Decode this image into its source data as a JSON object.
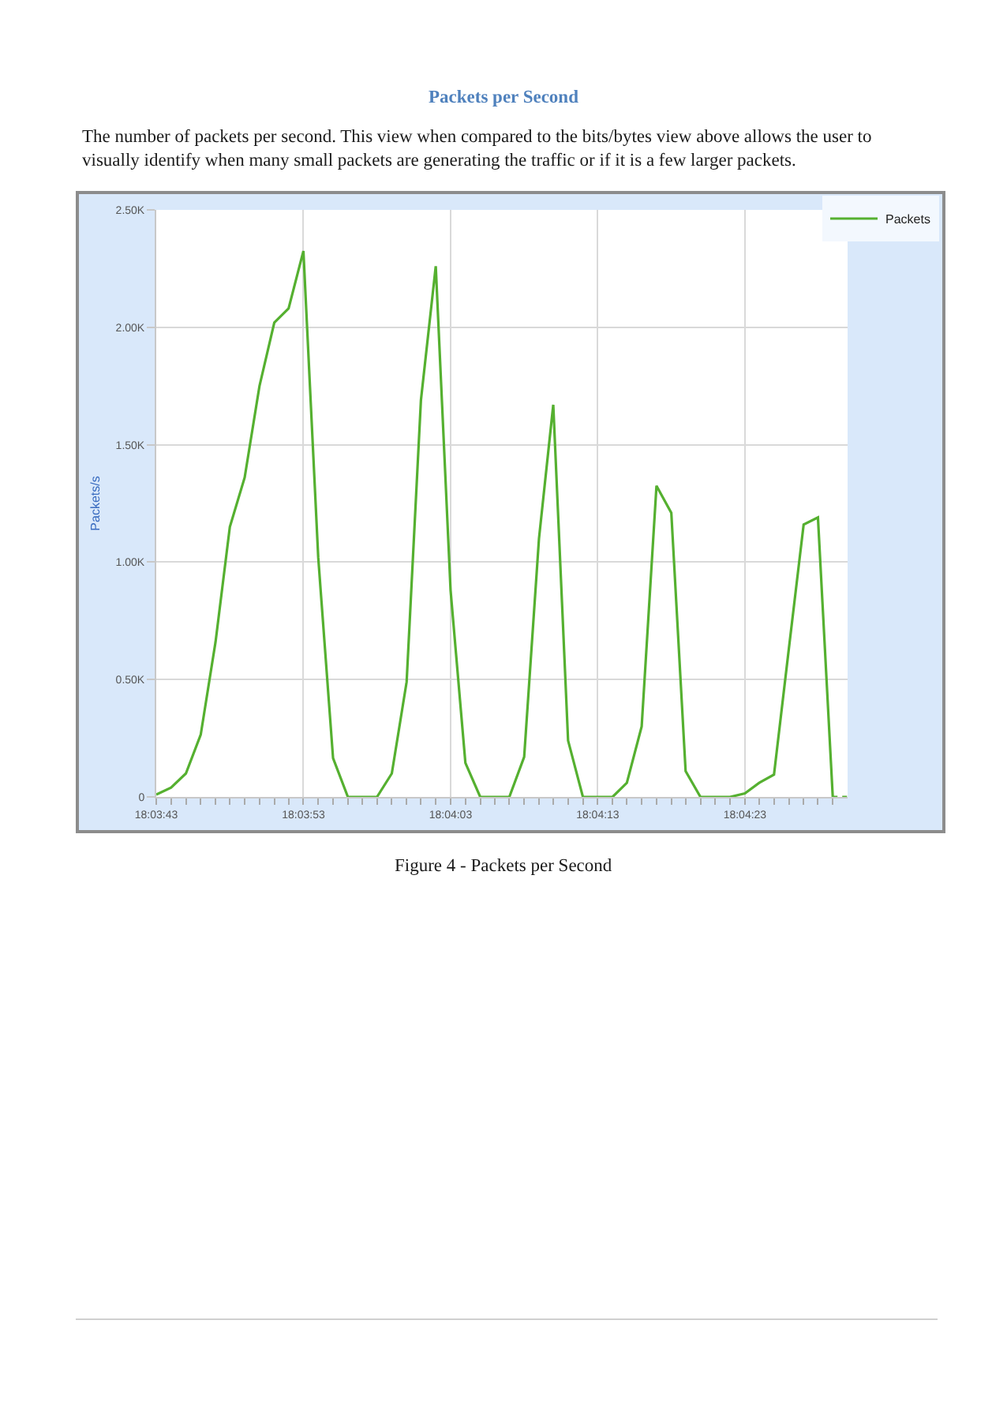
{
  "chart_data": {
    "type": "line",
    "title": "Packets per Second",
    "subtitle": "The number of packets per second. This view when compared to the bits/bytes view above allows the user to visually identify when many small packets are generating the traffic or if it is a few larger packets.",
    "ylabel": "Packets/s",
    "annotations": [
      "Figure 4 - Packets per Second"
    ],
    "x": [
      18.06194,
      18.06222,
      18.0625,
      18.06278,
      18.06306,
      18.06333,
      18.06361,
      18.06389,
      18.06417,
      18.06444,
      18.06472,
      18.065,
      18.06528,
      18.06556,
      18.06583,
      18.06611,
      18.06639,
      18.06667,
      18.06694,
      18.06722,
      18.0675,
      18.06778,
      18.06806,
      18.06833,
      18.06861,
      18.06889,
      18.06917,
      18.06944,
      18.06972,
      18.07,
      18.07028,
      18.07056,
      18.07083,
      18.07111,
      18.07139,
      18.07167,
      18.07194,
      18.07222,
      18.0725,
      18.07278,
      18.07306,
      18.07333,
      18.07361,
      18.07389,
      18.07417,
      18.07444,
      18.07472
    ],
    "series": [
      {
        "name": "Packets",
        "color": "#55b030",
        "values": [
          10,
          40,
          100,
          265,
          660,
          1150,
          1360,
          1750,
          2020,
          2080,
          2325,
          1020,
          165,
          0,
          0,
          0,
          100,
          490,
          1690,
          2260,
          880,
          145,
          0,
          0,
          0,
          170,
          1100,
          1670,
          240,
          0,
          0,
          0,
          60,
          300,
          1325,
          1210,
          110,
          0,
          0,
          0,
          15,
          60,
          95,
          630,
          1160,
          1190,
          0
        ]
      },
      {
        "color": "#55b030",
        "x": [
          18.07472,
          18.075
        ],
        "values": [
          0,
          0
        ],
        "line_style": "dotted"
      }
    ],
    "xlim": [
      18.06194,
      18.075
    ],
    "xticks": [
      {
        "value": 18.06194,
        "label": "18:03:43"
      },
      {
        "value": 18.06222,
        "label": null
      },
      {
        "value": 18.0625,
        "label": null
      },
      {
        "value": 18.06278,
        "label": null
      },
      {
        "value": 18.06306,
        "label": null
      },
      {
        "value": 18.06333,
        "label": null
      },
      {
        "value": 18.06361,
        "label": null
      },
      {
        "value": 18.06389,
        "label": null
      },
      {
        "value": 18.06417,
        "label": null
      },
      {
        "value": 18.06444,
        "label": null
      },
      {
        "value": 18.06472,
        "label": "18:03:53"
      },
      {
        "value": 18.065,
        "label": null
      },
      {
        "value": 18.06528,
        "label": null
      },
      {
        "value": 18.06556,
        "label": null
      },
      {
        "value": 18.06583,
        "label": null
      },
      {
        "value": 18.06611,
        "label": null
      },
      {
        "value": 18.06639,
        "label": null
      },
      {
        "value": 18.06667,
        "label": null
      },
      {
        "value": 18.06694,
        "label": null
      },
      {
        "value": 18.06722,
        "label": null
      },
      {
        "value": 18.0675,
        "label": "18:04:03"
      },
      {
        "value": 18.06778,
        "label": null
      },
      {
        "value": 18.06806,
        "label": null
      },
      {
        "value": 18.06833,
        "label": null
      },
      {
        "value": 18.06861,
        "label": null
      },
      {
        "value": 18.06889,
        "label": null
      },
      {
        "value": 18.06917,
        "label": null
      },
      {
        "value": 18.06944,
        "label": null
      },
      {
        "value": 18.06972,
        "label": null
      },
      {
        "value": 18.07,
        "label": null
      },
      {
        "value": 18.07028,
        "label": "18:04:13"
      },
      {
        "value": 18.07056,
        "label": null
      },
      {
        "value": 18.07083,
        "label": null
      },
      {
        "value": 18.07111,
        "label": null
      },
      {
        "value": 18.07139,
        "label": null
      },
      {
        "value": 18.07167,
        "label": null
      },
      {
        "value": 18.07194,
        "label": null
      },
      {
        "value": 18.07222,
        "label": null
      },
      {
        "value": 18.0725,
        "label": null
      },
      {
        "value": 18.07278,
        "label": null
      },
      {
        "value": 18.07306,
        "label": "18:04:23"
      },
      {
        "value": 18.07333,
        "label": null
      },
      {
        "value": 18.07361,
        "label": null
      },
      {
        "value": 18.07389,
        "label": null
      },
      {
        "value": 18.07417,
        "label": null
      },
      {
        "value": 18.07444,
        "label": null
      },
      {
        "value": 18.07472,
        "label": null
      }
    ],
    "ylim": [
      0,
      2500
    ],
    "yticks": [
      0,
      {
        "value": 500,
        "label": "0.50K"
      },
      {
        "value": 1000,
        "label": "1.00K"
      },
      {
        "value": 1500,
        "label": "1.50K"
      },
      {
        "value": 2000,
        "label": "2.00K"
      },
      {
        "value": 2500,
        "label": "2.50K"
      }
    ],
    "grid": true,
    "legend": "top right",
    "line_style": "solid"
  }
}
